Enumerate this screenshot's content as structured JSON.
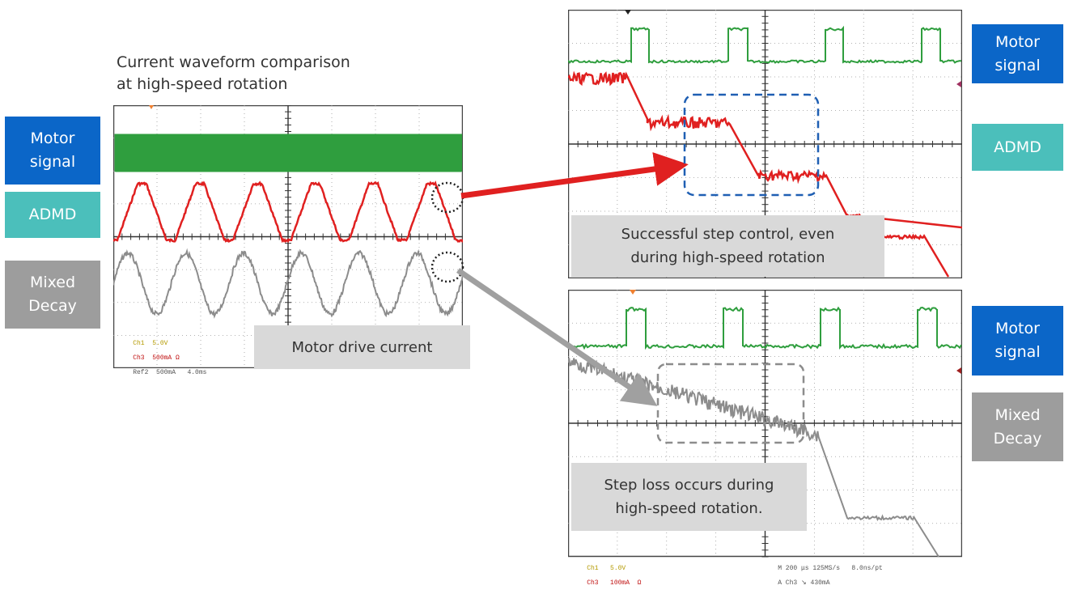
{
  "title": "Current waveform comparison\nat high-speed rotation",
  "labels": {
    "motor_signal": "Motor\nsignal",
    "admd": "ADMD",
    "mixed_decay": "Mixed\nDecay"
  },
  "callouts": {
    "motor_drive_current": "Motor drive current",
    "success": "Successful step control, even\nduring high-speed rotation",
    "step_loss": "Step loss occurs during\nhigh-speed rotation."
  },
  "readouts": {
    "left": {
      "ch1": "Ch1",
      "ch1_val": "5.0V",
      "ch3": "Ch3",
      "ch3_val": "500mA",
      "ref2": "Ref2",
      "ref2_val": "500mA",
      "time": "4.0ms",
      "ohm": "Ω"
    },
    "bottom_right": {
      "ch1": "Ch1",
      "ch1_val": "5.0V",
      "ch3": "Ch3",
      "ch3_val": "100mA",
      "ohm": "Ω",
      "timebase": "M 200 μs 125MS/s",
      "ns": "8.0ns/pt",
      "trigger": "A Ch3 ↘ 430mA"
    }
  },
  "colors": {
    "blue": "#0b66c8",
    "teal": "#4bbfbb",
    "gray_label": "#9d9d9d",
    "callout": "#d9d9d9",
    "green_trace": "#2f9e3e",
    "red_trace": "#e02020",
    "gray_trace": "#8c8c8c"
  }
}
